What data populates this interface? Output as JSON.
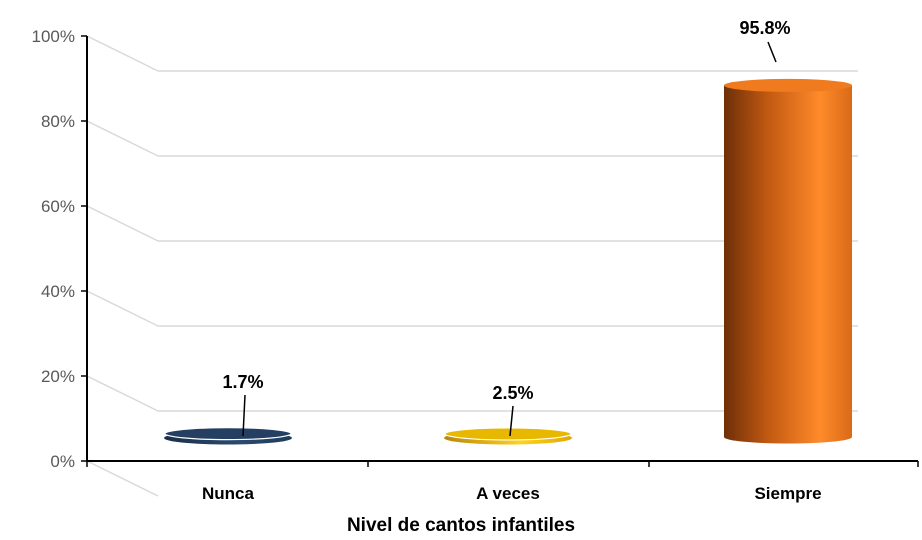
{
  "chart_data": {
    "type": "bar",
    "title": "",
    "xlabel": "Nivel de cantos infantiles",
    "ylabel": "",
    "categories": [
      "Nunca",
      "A veces",
      "Siempre"
    ],
    "values": [
      1.7,
      2.5,
      95.8
    ],
    "value_labels": [
      "1.7%",
      "2.5%",
      "95.8%"
    ],
    "ylim": [
      0,
      100
    ],
    "yticks": [
      0,
      20,
      40,
      60,
      80,
      100
    ],
    "ytick_labels": [
      "0%",
      "20%",
      "40%",
      "60%",
      "80%",
      "100%"
    ],
    "grid": true,
    "legend": "none",
    "style": "3d-cylinder",
    "colors": [
      "#1f3a5a",
      "#d4a017",
      "#e06a10"
    ]
  }
}
